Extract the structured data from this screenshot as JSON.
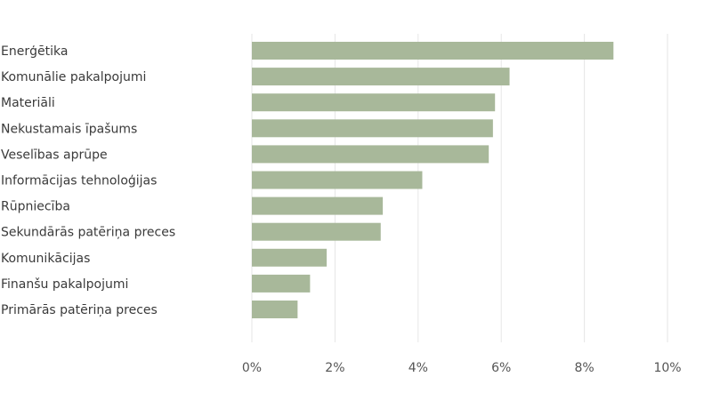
{
  "chart_data": {
    "type": "bar",
    "orientation": "horizontal",
    "title": "",
    "xlabel": "",
    "ylabel": "",
    "categories": [
      "Enerģētika",
      "Komunālie pakalpojumi",
      "Materiāli",
      "Nekustamais īpašums",
      "Veselības aprūpe",
      "Informācijas tehnoloģijas",
      "Rūpniecība",
      "Sekundārās patēriņa preces",
      "Komunikācijas",
      "Finanšu pakalpojumi",
      "Primārās patēriņa preces"
    ],
    "values": [
      8.7,
      6.2,
      5.85,
      5.8,
      5.7,
      4.1,
      3.15,
      3.1,
      1.8,
      1.4,
      1.1
    ],
    "xlim": [
      0,
      10
    ],
    "ticks": [
      0,
      2,
      4,
      6,
      8,
      10
    ],
    "tick_labels": [
      "0%",
      "2%",
      "4%",
      "6%",
      "8%",
      "10%"
    ],
    "bar_color": "#a8b89a",
    "grid": true,
    "legend": "none"
  }
}
